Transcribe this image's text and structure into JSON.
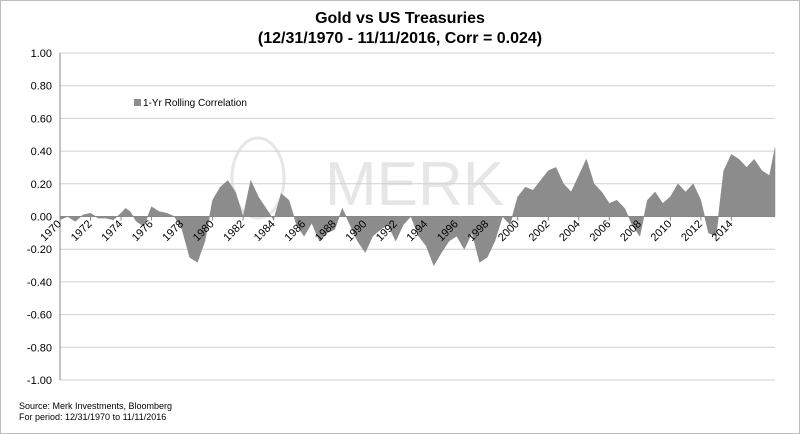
{
  "title_line1": "Gold vs US Treasuries",
  "title_line2": "(12/31/1970 - 11/11/2016, Corr = 0.024)",
  "watermark": "MERK",
  "footer": {
    "source": "Source: Merk Investments, Bloomberg",
    "period": "For period: 12/31/1970 to 11/11/2016"
  },
  "colors": {
    "area": "#8c8c8c",
    "grid": "#d0d0d0",
    "axis": "#888888",
    "watermark": "#e6e6e6"
  },
  "chart_data": {
    "type": "area",
    "title": "Gold vs US Treasuries (12/31/1970 - 11/11/2016, Corr = 0.024)",
    "xlabel": "",
    "ylabel": "",
    "ylim": [
      -1.0,
      1.0
    ],
    "yticks": [
      "1.00",
      "0.80",
      "0.60",
      "0.40",
      "0.20",
      "0.00",
      "-0.20",
      "-0.40",
      "-0.60",
      "-0.80",
      "-1.00"
    ],
    "xticks": [
      "1970",
      "1972",
      "1974",
      "1976",
      "1978",
      "1980",
      "1982",
      "1984",
      "1986",
      "1988",
      "1990",
      "1992",
      "1994",
      "1996",
      "1998",
      "2000",
      "2002",
      "2004",
      "2006",
      "2008",
      "2010",
      "2012",
      "2014"
    ],
    "xlim": [
      1970.0,
      2016.86
    ],
    "grid": true,
    "legend_position": "top-left",
    "series": [
      {
        "name": "1-Yr Rolling Correlation",
        "x": [
          1970.0,
          1970.5,
          1971.0,
          1971.5,
          1972.0,
          1972.5,
          1973.0,
          1973.5,
          1974.0,
          1974.3,
          1974.6,
          1975.0,
          1975.5,
          1976.0,
          1976.5,
          1977.0,
          1977.5,
          1978.0,
          1978.5,
          1979.0,
          1979.5,
          1980.0,
          1980.5,
          1981.0,
          1981.5,
          1982.0,
          1982.5,
          1983.0,
          1983.5,
          1984.0,
          1984.5,
          1985.0,
          1985.5,
          1986.0,
          1986.5,
          1987.0,
          1987.5,
          1988.0,
          1988.5,
          1989.0,
          1989.5,
          1990.0,
          1990.5,
          1991.0,
          1991.5,
          1992.0,
          1992.5,
          1993.0,
          1993.5,
          1994.0,
          1994.5,
          1995.0,
          1995.5,
          1996.0,
          1996.5,
          1997.0,
          1997.5,
          1998.0,
          1998.5,
          1999.0,
          1999.5,
          2000.0,
          2000.5,
          2001.0,
          2001.5,
          2002.0,
          2002.5,
          2003.0,
          2003.5,
          2004.0,
          2004.5,
          2005.0,
          2005.5,
          2006.0,
          2006.5,
          2007.0,
          2007.5,
          2008.0,
          2008.5,
          2009.0,
          2009.5,
          2010.0,
          2010.5,
          2011.0,
          2011.5,
          2012.0,
          2012.5,
          2013.0,
          2013.5,
          2014.0,
          2014.5,
          2015.0,
          2015.5,
          2016.0,
          2016.5,
          2016.86
        ],
        "values": [
          -0.02,
          0.0,
          -0.03,
          0.01,
          0.02,
          -0.01,
          -0.01,
          -0.02,
          0.02,
          0.05,
          0.03,
          -0.03,
          -0.06,
          0.06,
          0.03,
          0.02,
          0.0,
          -0.08,
          -0.25,
          -0.28,
          -0.15,
          0.1,
          0.18,
          0.22,
          0.15,
          0.0,
          0.22,
          0.12,
          0.05,
          -0.02,
          0.14,
          0.1,
          -0.05,
          -0.12,
          -0.04,
          -0.15,
          -0.1,
          -0.08,
          0.05,
          -0.05,
          -0.15,
          -0.22,
          -0.12,
          -0.08,
          -0.05,
          -0.15,
          -0.05,
          0.0,
          -0.12,
          -0.18,
          -0.3,
          -0.22,
          -0.15,
          -0.12,
          -0.2,
          -0.1,
          -0.28,
          -0.25,
          -0.15,
          0.0,
          -0.05,
          0.12,
          0.18,
          0.16,
          0.22,
          0.28,
          0.3,
          0.2,
          0.15,
          0.25,
          0.35,
          0.2,
          0.15,
          0.08,
          0.1,
          0.05,
          -0.05,
          -0.12,
          0.1,
          0.15,
          0.08,
          0.12,
          0.2,
          0.15,
          0.2,
          0.1,
          -0.1,
          -0.12,
          0.28,
          0.38,
          0.35,
          0.3,
          0.35,
          0.28,
          0.25,
          0.42
        ]
      }
    ]
  }
}
